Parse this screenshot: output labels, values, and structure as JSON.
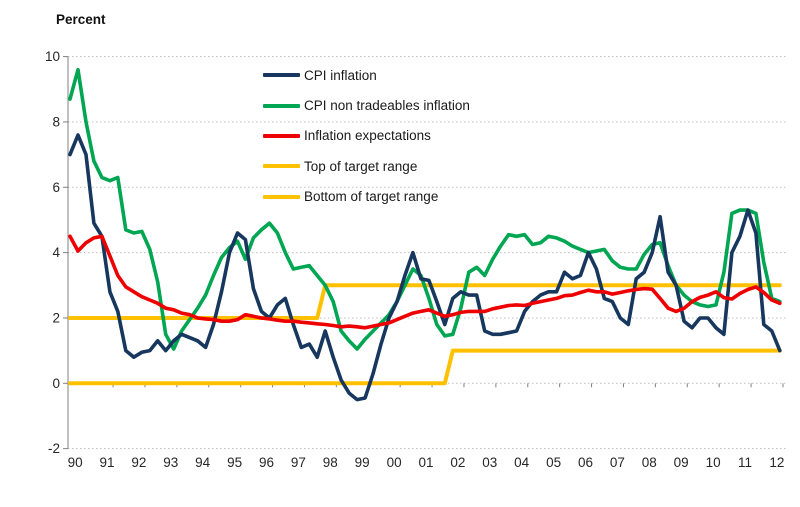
{
  "chart_data": {
    "type": "line",
    "title": "Percent",
    "grid": "horizontal-dotted",
    "legend_position": "inside-top-center",
    "x_axis": {
      "labels": [
        "90",
        "91",
        "92",
        "93",
        "94",
        "95",
        "96",
        "97",
        "98",
        "99",
        "00",
        "01",
        "02",
        "03",
        "04",
        "05",
        "06",
        "07",
        "08",
        "09",
        "10",
        "11",
        "12"
      ],
      "start_year": 1990,
      "points_per_year": 4
    },
    "y_axis": {
      "ticks": [
        10,
        8,
        6,
        4,
        2,
        0,
        -2
      ],
      "labels": [
        "10",
        "8",
        "6",
        "4",
        "2",
        "0",
        "-2"
      ],
      "range": [
        -2,
        10
      ]
    },
    "colors": {
      "cpi": "#17375E",
      "non_tradeables": "#00A651",
      "expectations": "#EE0000",
      "target": "#FFC000",
      "gridline": "#BFBFBF",
      "axis": "#808080",
      "text": "#262626"
    },
    "series": [
      {
        "name": "CPI inflation",
        "color": "#17375E",
        "x_start": 1990,
        "x_step": 0.25,
        "values": [
          7.0,
          7.6,
          7.0,
          4.9,
          4.5,
          2.8,
          2.2,
          1.0,
          0.8,
          0.95,
          1.0,
          1.3,
          1.0,
          1.3,
          1.5,
          1.4,
          1.3,
          1.1,
          1.8,
          2.8,
          4.0,
          4.6,
          4.4,
          2.9,
          2.2,
          2.0,
          2.4,
          2.6,
          1.8,
          1.1,
          1.2,
          0.8,
          1.6,
          0.8,
          0.1,
          -0.3,
          -0.5,
          -0.45,
          0.3,
          1.2,
          2.0,
          2.5,
          3.3,
          4.0,
          3.2,
          3.15,
          2.5,
          1.8,
          2.6,
          2.8,
          2.7,
          2.7,
          1.6,
          1.5,
          1.5,
          1.55,
          1.6,
          2.2,
          2.5,
          2.7,
          2.8,
          2.8,
          3.4,
          3.2,
          3.3,
          4.0,
          3.5,
          2.6,
          2.5,
          2.0,
          1.8,
          3.2,
          3.4,
          4.0,
          5.1,
          3.4,
          3.0,
          1.9,
          1.7,
          2.0,
          2.0,
          1.7,
          1.5,
          4.0,
          4.5,
          5.3,
          4.6,
          1.8,
          1.6,
          1.0
        ]
      },
      {
        "name": "CPI non tradeables inflation",
        "color": "#00A651",
        "x_start": 1990,
        "x_step": 0.25,
        "values": [
          8.7,
          9.6,
          8.0,
          6.8,
          6.3,
          6.2,
          6.3,
          4.7,
          4.6,
          4.65,
          4.1,
          3.1,
          1.5,
          1.05,
          1.6,
          1.95,
          2.3,
          2.7,
          3.3,
          3.85,
          4.15,
          4.35,
          3.8,
          4.45,
          4.7,
          4.9,
          4.6,
          4.0,
          3.5,
          3.55,
          3.6,
          3.3,
          3.0,
          2.5,
          1.6,
          1.3,
          1.05,
          1.35,
          1.6,
          1.85,
          2.1,
          2.5,
          3.0,
          3.5,
          3.3,
          2.6,
          1.8,
          1.45,
          1.5,
          2.3,
          3.4,
          3.55,
          3.3,
          3.8,
          4.2,
          4.55,
          4.5,
          4.55,
          4.25,
          4.3,
          4.5,
          4.45,
          4.35,
          4.2,
          4.1,
          4.0,
          4.05,
          4.1,
          3.75,
          3.55,
          3.5,
          3.5,
          3.95,
          4.25,
          4.3,
          3.6,
          3.0,
          2.7,
          2.5,
          2.4,
          2.35,
          2.4,
          3.4,
          5.2,
          5.3,
          5.3,
          5.2,
          3.7,
          2.6,
          2.5
        ]
      },
      {
        "name": "Inflation expectations",
        "color": "#EE0000",
        "x_start": 1990,
        "x_step": 0.25,
        "values": [
          4.5,
          4.05,
          4.3,
          4.45,
          4.5,
          3.9,
          3.3,
          2.95,
          2.8,
          2.65,
          2.55,
          2.45,
          2.3,
          2.25,
          2.15,
          2.1,
          2.0,
          1.97,
          1.95,
          1.9,
          1.9,
          1.95,
          2.1,
          2.05,
          2.0,
          1.97,
          1.93,
          1.9,
          1.9,
          1.87,
          1.85,
          1.82,
          1.8,
          1.77,
          1.73,
          1.75,
          1.73,
          1.7,
          1.75,
          1.8,
          1.85,
          1.95,
          2.05,
          2.15,
          2.2,
          2.25,
          2.15,
          2.05,
          2.1,
          2.17,
          2.2,
          2.2,
          2.2,
          2.28,
          2.33,
          2.38,
          2.4,
          2.38,
          2.45,
          2.5,
          2.55,
          2.6,
          2.68,
          2.7,
          2.78,
          2.85,
          2.8,
          2.8,
          2.73,
          2.78,
          2.83,
          2.87,
          2.9,
          2.88,
          2.6,
          2.3,
          2.2,
          2.3,
          2.5,
          2.63,
          2.7,
          2.8,
          2.62,
          2.58,
          2.75,
          2.87,
          2.95,
          2.78,
          2.55,
          2.45
        ]
      },
      {
        "name": "Top of target range",
        "color": "#FFC000",
        "points": [
          [
            1990.0,
            2
          ],
          [
            1997.75,
            2
          ],
          [
            1998.0,
            3
          ],
          [
            2012.25,
            3
          ]
        ]
      },
      {
        "name": "Bottom of target range",
        "color": "#FFC000",
        "points": [
          [
            1990.0,
            0
          ],
          [
            2001.75,
            0
          ],
          [
            2002.0,
            1
          ],
          [
            2012.25,
            1
          ]
        ]
      }
    ]
  }
}
